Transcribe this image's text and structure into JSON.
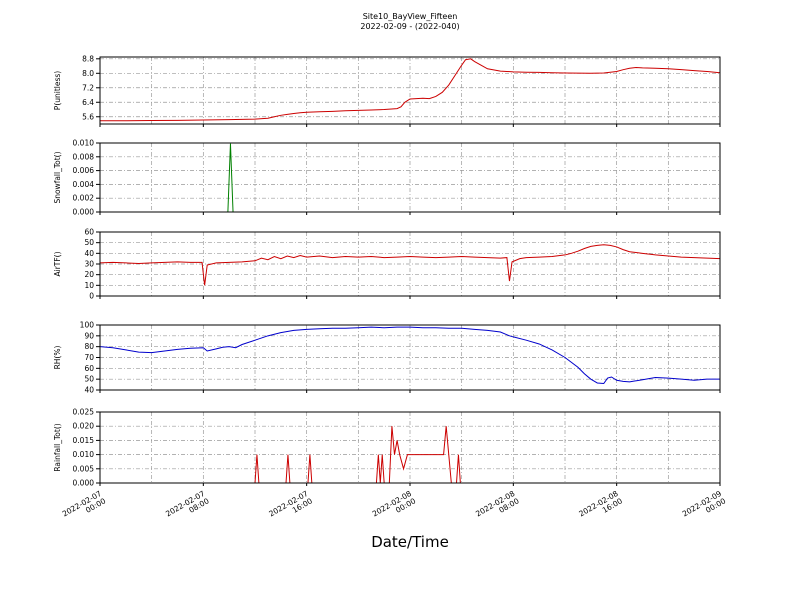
{
  "header": {
    "title_line1": "Site10_BayView_Fifteen",
    "title_line2": "2022-02-09 - (2022-040)"
  },
  "xaxis": {
    "label": "Date/Time",
    "range_hours": [
      0,
      48
    ],
    "ticks": [
      {
        "hour": 0,
        "date": "2022-02-07",
        "time": "00:00"
      },
      {
        "hour": 8,
        "date": "2022-02-07",
        "time": "08:00"
      },
      {
        "hour": 16,
        "date": "2022-02-07",
        "time": "16:00"
      },
      {
        "hour": 24,
        "date": "2022-02-08",
        "time": "00:00"
      },
      {
        "hour": 32,
        "date": "2022-02-08",
        "time": "08:00"
      },
      {
        "hour": 40,
        "date": "2022-02-08",
        "time": "16:00"
      },
      {
        "hour": 48,
        "date": "2022-02-09",
        "time": "00:00"
      }
    ]
  },
  "chart_data": [
    {
      "type": "line",
      "name": "P",
      "ylabel": "P(unitless)",
      "color": "#cc0000",
      "ylim": [
        5.2,
        8.9
      ],
      "yticks": [
        5.6,
        6.4,
        7.2,
        8.0,
        8.8
      ],
      "ytick_labels": [
        "5.6",
        "6.4",
        "7.2",
        "8.0",
        "8.8"
      ],
      "x": [
        0,
        2,
        4,
        6,
        8,
        10,
        12,
        13,
        13.5,
        14,
        14.5,
        15,
        15.5,
        16,
        17,
        18,
        19,
        20,
        21,
        22,
        23,
        23.3,
        23.6,
        24,
        24.5,
        25,
        25.5,
        26,
        26.5,
        27,
        27.5,
        28,
        28.3,
        28.7,
        29,
        29.5,
        30,
        31,
        32,
        33,
        34,
        35,
        36,
        37,
        38,
        39,
        40,
        40.5,
        41,
        41.5,
        42,
        43,
        44,
        45,
        46,
        47,
        48
      ],
      "y": [
        5.38,
        5.38,
        5.39,
        5.4,
        5.42,
        5.44,
        5.47,
        5.52,
        5.6,
        5.68,
        5.73,
        5.78,
        5.82,
        5.85,
        5.88,
        5.9,
        5.93,
        5.95,
        5.97,
        6.0,
        6.05,
        6.15,
        6.4,
        6.58,
        6.6,
        6.62,
        6.6,
        6.72,
        6.95,
        7.35,
        7.9,
        8.45,
        8.75,
        8.8,
        8.65,
        8.45,
        8.25,
        8.12,
        8.08,
        8.06,
        8.05,
        8.03,
        8.02,
        8.01,
        8.0,
        8.02,
        8.1,
        8.2,
        8.28,
        8.32,
        8.3,
        8.28,
        8.25,
        8.2,
        8.15,
        8.1,
        8.03
      ]
    },
    {
      "type": "line",
      "name": "Snowfall",
      "ylabel": "Snowfall_Tot()",
      "color": "#008000",
      "ylim": [
        0,
        0.01
      ],
      "yticks": [
        0,
        0.002,
        0.004,
        0.006,
        0.008,
        0.01
      ],
      "ytick_labels": [
        "0.000",
        "0.002",
        "0.004",
        "0.006",
        "0.008",
        "0.010"
      ],
      "x": [
        0,
        9.9,
        10.1,
        10.3,
        48
      ],
      "y": [
        0,
        0,
        0.0099,
        0,
        0
      ]
    },
    {
      "type": "line",
      "name": "AirTF",
      "ylabel": "AirTF()",
      "color": "#cc0000",
      "ylim": [
        0,
        60
      ],
      "yticks": [
        0,
        10,
        20,
        30,
        40,
        50,
        60
      ],
      "ytick_labels": [
        "0",
        "10",
        "20",
        "30",
        "40",
        "50",
        "60"
      ],
      "x": [
        0,
        1,
        2,
        3,
        4,
        5,
        6,
        7,
        7.9,
        8.1,
        8.3,
        9,
        10,
        11,
        12,
        12.5,
        13,
        13.5,
        14,
        14.5,
        15,
        15.5,
        16,
        17,
        18,
        19,
        20,
        21,
        22,
        23,
        24,
        25,
        26,
        27,
        28,
        29,
        30,
        31,
        31.5,
        31.7,
        31.9,
        32.5,
        33,
        34,
        35,
        36,
        36.5,
        37,
        37.5,
        38,
        38.5,
        39,
        39.5,
        40,
        40.5,
        41,
        42,
        43,
        44,
        45,
        46,
        47,
        48
      ],
      "y": [
        31,
        31.5,
        31,
        30.5,
        31,
        31.5,
        32,
        31.5,
        31.5,
        10,
        29,
        31,
        31.5,
        32,
        33,
        35.5,
        34,
        37,
        35,
        37.5,
        36,
        38,
        36.5,
        37.5,
        36,
        37,
        36.5,
        37,
        36,
        36.5,
        37,
        36.5,
        36,
        36.5,
        37,
        36.5,
        36,
        35.5,
        36,
        14,
        32,
        35,
        36,
        36.5,
        37,
        38.5,
        40,
        42,
        44.5,
        46.5,
        47.5,
        48,
        47.5,
        46,
        43.5,
        41.5,
        40,
        38.5,
        37.5,
        36.5,
        36,
        35.5,
        35
      ]
    },
    {
      "type": "line",
      "name": "RH",
      "ylabel": "RH(%)",
      "color": "#0000cc",
      "ylim": [
        40,
        100
      ],
      "yticks": [
        40,
        50,
        60,
        70,
        80,
        90,
        100
      ],
      "ytick_labels": [
        "40",
        "50",
        "60",
        "70",
        "80",
        "90",
        "100"
      ],
      "x": [
        0,
        1,
        2,
        3,
        4,
        5,
        6,
        7,
        8,
        8.3,
        9,
        9.5,
        10,
        10.5,
        11,
        12,
        13,
        14,
        15,
        16,
        17,
        18,
        19,
        20,
        21,
        22,
        23,
        24,
        25,
        26,
        27,
        28,
        29,
        30,
        31,
        31.7,
        32,
        33,
        34,
        35,
        36,
        37,
        37.5,
        38,
        38.5,
        39,
        39.3,
        39.6,
        40,
        40.5,
        41,
        42,
        43,
        44,
        45,
        46,
        47,
        48
      ],
      "y": [
        80,
        79,
        77,
        75,
        74.5,
        76,
        77.5,
        78.5,
        79,
        76,
        78,
        79.5,
        80,
        79,
        82,
        86,
        90,
        93,
        95,
        96,
        96.5,
        97,
        97,
        97.5,
        98,
        97.5,
        98,
        98,
        97.5,
        97.5,
        97,
        97,
        96,
        95,
        93.5,
        90,
        89,
        86,
        82.5,
        77,
        70,
        61,
        55,
        50,
        46.5,
        46,
        51,
        52,
        49,
        48,
        47.5,
        49.5,
        51.5,
        51,
        50,
        49,
        50,
        50
      ]
    },
    {
      "type": "line",
      "name": "Rainfall",
      "ylabel": "Rainfall_Tot()",
      "color": "#cc0000",
      "ylim": [
        0,
        0.025
      ],
      "yticks": [
        0,
        0.005,
        0.01,
        0.015,
        0.02,
        0.025
      ],
      "ytick_labels": [
        "0.000",
        "0.005",
        "0.010",
        "0.015",
        "0.020",
        "0.025"
      ],
      "x": [
        0,
        12.0,
        12.15,
        12.3,
        14.4,
        14.55,
        14.7,
        16.1,
        16.25,
        16.4,
        21.4,
        21.55,
        21.7,
        21.85,
        22.0,
        22.4,
        22.6,
        22.8,
        23.0,
        23.2,
        23.5,
        23.8,
        26.6,
        26.8,
        27.0,
        27.2,
        27.6,
        27.75,
        27.9,
        48
      ],
      "y": [
        0,
        0,
        0.01,
        0,
        0,
        0.01,
        0,
        0,
        0.01,
        0,
        0,
        0.01,
        0,
        0.01,
        0,
        0,
        0.02,
        0.01,
        0.015,
        0.01,
        0.005,
        0.01,
        0.01,
        0.02,
        0.01,
        0,
        0,
        0.01,
        0,
        0
      ]
    }
  ]
}
